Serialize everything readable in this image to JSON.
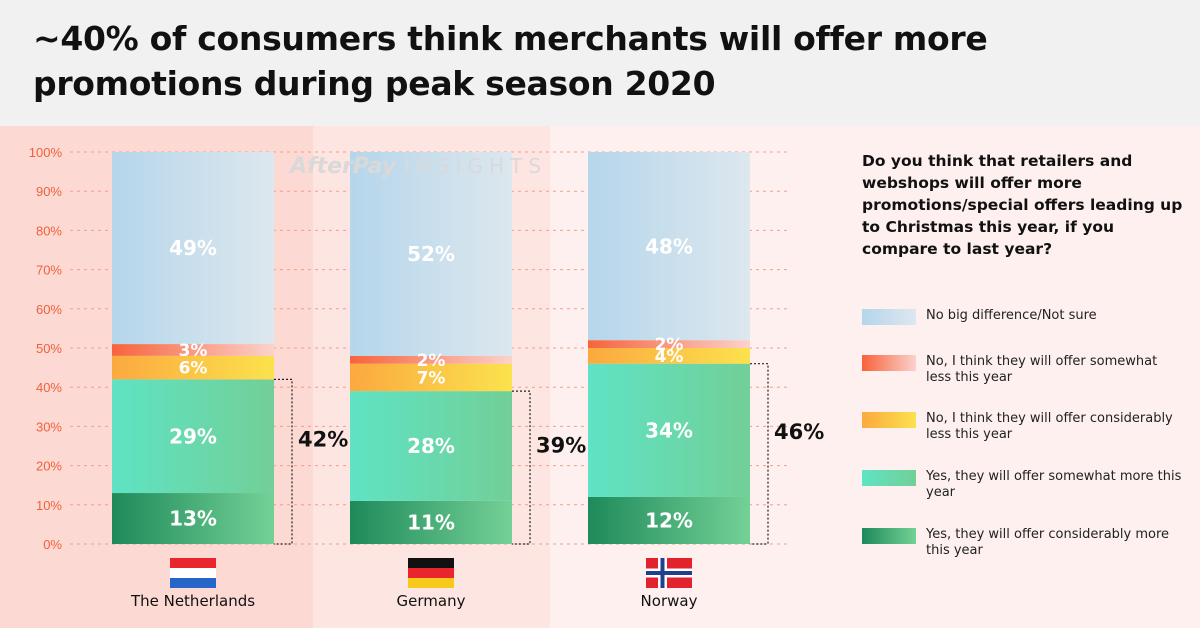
{
  "title": "~40% of consumers think merchants will offer more promotions during peak season 2020",
  "watermark": {
    "brand": "AfterPay",
    "suffix": "INSIGHTS"
  },
  "legend_question": "Do you think that retailers and webshops will offer more promotions/special offers leading up to Christmas this year, if you compare to last year?",
  "chart_data": {
    "type": "bar",
    "stacked": true,
    "categories": [
      "The Netherlands",
      "Germany",
      "Norway"
    ],
    "ylim": [
      0,
      100
    ],
    "yticks": [
      "0%",
      "10%",
      "20%",
      "30%",
      "40%",
      "50%",
      "60%",
      "70%",
      "80%",
      "90%",
      "100%"
    ],
    "series": [
      {
        "name": "Yes, they will offer considerably more this year",
        "values": [
          13,
          11,
          12
        ],
        "labels": [
          "13%",
          "11%",
          "12%"
        ],
        "color_from": "#1e8a5a",
        "color_to": "#74d196"
      },
      {
        "name": "Yes, they will offer somewhat more this year",
        "values": [
          29,
          28,
          34
        ],
        "labels": [
          "29%",
          "28%",
          "34%"
        ],
        "color_from": "#5fe3c4",
        "color_to": "#72cf97"
      },
      {
        "name": "No, I think they will offer considerably less this year",
        "values": [
          6,
          7,
          4
        ],
        "labels": [
          "6%",
          "7%",
          "4%"
        ],
        "color_from": "#fba93f",
        "color_to": "#fbe24d"
      },
      {
        "name": "No, I think they will offer somewhat less this year",
        "values": [
          3,
          2,
          2
        ],
        "labels": [
          "3%",
          "2%",
          "2%"
        ],
        "color_from": "#f7633c",
        "color_to": "#fbd2cc"
      },
      {
        "name": "No big difference/Not sure",
        "values": [
          49,
          52,
          48
        ],
        "labels": [
          "49%",
          "52%",
          "48%"
        ],
        "color_from": "#b5d6eb",
        "color_to": "#dde7ee"
      }
    ],
    "bracket_labels": [
      "42%",
      "39%",
      "46%"
    ],
    "flags": [
      "netherlands-flag",
      "germany-flag",
      "norway-flag"
    ],
    "legend_order": [
      4,
      3,
      2,
      1,
      0
    ],
    "colors": {
      "axis_text": "#f0613c",
      "grid": "#f19f8c"
    }
  }
}
